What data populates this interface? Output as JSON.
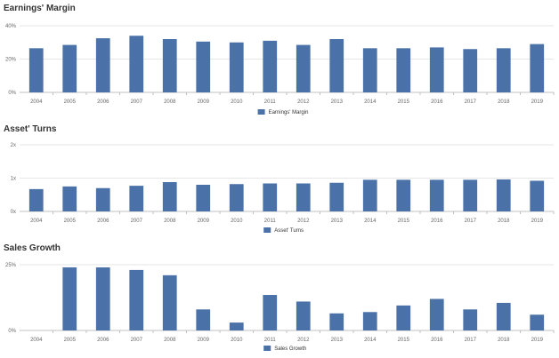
{
  "colors": {
    "bar": "#4a72a8",
    "grid": "#e6e6e6",
    "axis": "#c0c0c0"
  },
  "chart_data": [
    {
      "type": "bar",
      "title": "Earnings' Margin",
      "categories": [
        "2004",
        "2005",
        "2006",
        "2007",
        "2008",
        "2009",
        "2010",
        "2011",
        "2012",
        "2013",
        "2014",
        "2015",
        "2016",
        "2017",
        "2018",
        "2019"
      ],
      "series": [
        {
          "name": "Earnings' Margin",
          "values": [
            26.5,
            28.5,
            32.5,
            34,
            32,
            30.5,
            30,
            31,
            28.5,
            32,
            26.5,
            26.5,
            27,
            26,
            26.5,
            29
          ]
        }
      ],
      "ylim": [
        0,
        40
      ],
      "yticks": [
        0,
        20,
        40
      ],
      "ytick_labels": [
        "0%",
        "20%",
        "40%"
      ],
      "xlabel": "",
      "ylabel": "",
      "grid": true,
      "legend": "bottom-center"
    },
    {
      "type": "bar",
      "title": "Asset' Turns",
      "categories": [
        "2004",
        "2005",
        "2006",
        "2007",
        "2008",
        "2009",
        "2010",
        "2011",
        "2012",
        "2013",
        "2014",
        "2015",
        "2016",
        "2017",
        "2018",
        "2019"
      ],
      "series": [
        {
          "name": "Asset' Turns",
          "values": [
            0.67,
            0.75,
            0.7,
            0.77,
            0.88,
            0.8,
            0.82,
            0.84,
            0.84,
            0.86,
            0.95,
            0.95,
            0.95,
            0.95,
            0.96,
            0.92
          ]
        }
      ],
      "ylim": [
        0,
        2
      ],
      "yticks": [
        0,
        1,
        2
      ],
      "ytick_labels": [
        "0x",
        "1x",
        "2x"
      ],
      "xlabel": "",
      "ylabel": "",
      "grid": true,
      "legend": "bottom-center"
    },
    {
      "type": "bar",
      "title": "Sales Growth",
      "categories": [
        "2004",
        "2005",
        "2006",
        "2007",
        "2008",
        "2009",
        "2010",
        "2011",
        "2012",
        "2013",
        "2014",
        "2015",
        "2016",
        "2017",
        "2018",
        "2019"
      ],
      "series": [
        {
          "name": "Sales Growth",
          "values": [
            0,
            24,
            24,
            23,
            21,
            8,
            3,
            13.5,
            11,
            6.5,
            7,
            9.5,
            12,
            8,
            10.5,
            6
          ]
        }
      ],
      "ylim": [
        0,
        25
      ],
      "yticks": [
        0,
        25
      ],
      "ytick_labels": [
        "0%",
        "25%"
      ],
      "xlabel": "",
      "ylabel": "",
      "grid": true,
      "legend": "bottom-center"
    }
  ]
}
